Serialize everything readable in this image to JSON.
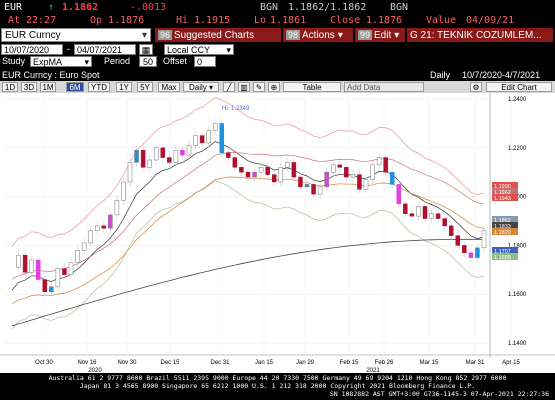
{
  "quote": {
    "ticker": "EUR",
    "arrow": "↑",
    "last": "1.1862",
    "change": "-.0013",
    "bgn": "BGN",
    "bid_ask": "1.1862/1.1862",
    "bgn2": "BGN",
    "time_label": "At",
    "time": "22:27",
    "open_label": "Op",
    "open": "1.1876",
    "high_label": "Hi",
    "high": "1.1915",
    "low_label": "Lo",
    "low": "1.1861",
    "close_label": "Close",
    "close": "1.1876",
    "value_label": "Value",
    "value_date": "04/09/21"
  },
  "toolbar": {
    "security": "EUR Curncy",
    "suggested_num": "96",
    "suggested_label": "Suggested Charts",
    "actions_num": "98",
    "actions_label": "Actions",
    "edit_num": "99",
    "edit_label": "Edit",
    "g_label": "G 21: TEKNIK COZUMLEM..."
  },
  "dates": {
    "start": "10/07/2020",
    "dash": "-",
    "end": "04/07/2021",
    "ccy": "Local CCY"
  },
  "study": {
    "label": "Study",
    "value": "ExpMA",
    "period_label": "Period",
    "period": "50",
    "offset_label": "Offset",
    "offset": "0"
  },
  "titlebar": {
    "name": "EUR Curncy : Euro Spot",
    "freq": "Daily",
    "range": "10/7/2020-4/7/2021"
  },
  "range_buttons": {
    "b1d": "1D",
    "b3d": "3D",
    "b1m": "1M",
    "b6m": "6M",
    "bytd": "YTD",
    "b1y": "1Y",
    "b5y": "5Y",
    "bmax": "Max",
    "daily": "Daily ▾",
    "table": "Table",
    "add_data": "Add Data",
    "edit_chart": "Edit Chart"
  },
  "chart_data": {
    "type": "candlestick",
    "ylim": [
      1.14,
      1.24
    ],
    "yticks": [
      "1.2400",
      "1.2200",
      "1.2000",
      "1.1800",
      "1.1600",
      "1.1400"
    ],
    "xticks": [
      "Oct 30",
      "Nov 16",
      "Nov 30",
      "Dec 15",
      "Dec 31",
      "Jan 15",
      "Jan 29",
      "Feb 15",
      "Feb 26",
      "Mar 15",
      "Mar 31",
      "Apr 15"
    ],
    "year_labels": [
      "2020",
      "2021"
    ],
    "hi_annotation": "Hi: 1.2349",
    "lo_annotation": "Lo: 1.1603",
    "price_labels": [
      {
        "text": "1.1990",
        "color": "#e05050"
      },
      {
        "text": "1.1962",
        "color": "#c87070"
      },
      {
        "text": "1.1943",
        "color": "#e05050"
      },
      {
        "text": "1.1862",
        "color": "#8899aa"
      },
      {
        "text": "1.1833",
        "color": "#444444"
      },
      {
        "text": "1.1820",
        "color": "#d4883a"
      },
      {
        "text": "1.1707",
        "color": "#4060c0"
      },
      {
        "text": "1.1688",
        "color": "#8fbf80"
      }
    ],
    "close_series": [
      1.171,
      1.176,
      1.169,
      1.174,
      1.166,
      1.161,
      1.163,
      1.1705,
      1.168,
      1.173,
      1.178,
      1.181,
      1.186,
      1.188,
      1.187,
      1.1925,
      1.1985,
      1.206,
      1.214,
      1.219,
      1.212,
      1.215,
      1.22,
      1.216,
      1.214,
      1.219,
      1.217,
      1.221,
      1.225,
      1.222,
      1.227,
      1.23,
      1.218,
      1.216,
      1.212,
      1.21,
      1.208,
      1.21,
      1.212,
      1.209,
      1.206,
      1.212,
      1.214,
      1.208,
      1.204,
      1.205,
      1.201,
      1.204,
      1.21,
      1.213,
      1.212,
      1.208,
      1.209,
      1.203,
      1.207,
      1.213,
      1.216,
      1.21,
      1.205,
      1.197,
      1.193,
      1.192,
      1.196,
      1.191,
      1.193,
      1.191,
      1.188,
      1.184,
      1.18,
      1.177,
      1.175,
      1.179,
      1.186
    ],
    "colors": {
      "up": "#ffffff",
      "down": "#b01030",
      "wick": "#cccccc"
    }
  },
  "footer": {
    "line1": "Australia 61 2 9777 8600 Brazil 5511 2395 9000 Europe 44 20 7330 7500 Germany 49 69 9204 1210 Hong Kong 852 2977 6000",
    "line2": "Japan 81 3 4565 8900          Singapore 65 6212 1000          U.S. 1 212 318 2000          Copyright 2021 Bloomberg Finance L.P.",
    "line3": "SN 1082882 AST  GMT+3:00 G736-1145-3 07-Apr-2021 22:27:36"
  }
}
